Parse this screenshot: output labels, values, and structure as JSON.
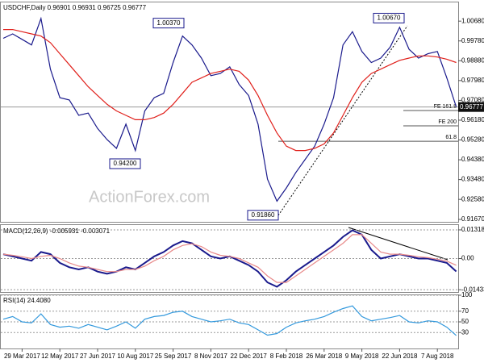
{
  "chart_data": [
    {
      "type": "line",
      "title": "USDCHF,Daily 0.96901 0.96931 0.96725 0.96777",
      "categories": [
        null,
        null,
        "29 Mar 2017",
        null,
        null,
        null,
        "12 May 2017",
        null,
        null,
        null,
        "27 Jun 2017",
        null,
        null,
        null,
        "10 Aug 2017",
        null,
        null,
        null,
        "25 Sep 2017",
        null,
        null,
        null,
        "8 Nov 2017",
        null,
        null,
        null,
        "22 Dec 2017",
        null,
        null,
        null,
        "8 Feb 2018",
        null,
        null,
        null,
        "26 Mar 2018",
        null,
        null,
        null,
        "9 May 2018",
        null,
        null,
        null,
        "22 Jun 2018",
        null,
        null,
        null,
        "7 Aug 2018",
        null,
        null
      ],
      "series": [
        {
          "color": "#1a1a8c",
          "values": [
            0.999,
            1.001,
            0.9985,
            0.996,
            1.008,
            0.985,
            0.972,
            0.971,
            0.964,
            0.965,
            0.958,
            0.953,
            0.949,
            0.96,
            0.948,
            0.966,
            0.972,
            0.974,
            0.988,
            1.0,
            0.996,
            0.99,
            0.982,
            0.983,
            0.986,
            0.978,
            0.973,
            0.96,
            0.935,
            0.925,
            0.931,
            0.938,
            0.944,
            0.95,
            0.96,
            0.972,
            0.996,
            1.002,
            0.993,
            0.988,
            0.99,
            0.995,
            1.004,
            0.994,
            0.99,
            0.992,
            0.993,
            0.981,
            0.9678
          ]
        },
        {
          "color": "#e0201b",
          "values": [
            1.003,
            1.003,
            1.002,
            1.001,
            1.0,
            0.997,
            0.992,
            0.987,
            0.982,
            0.977,
            0.973,
            0.969,
            0.966,
            0.964,
            0.962,
            0.962,
            0.963,
            0.965,
            0.969,
            0.974,
            0.979,
            0.981,
            0.983,
            0.984,
            0.985,
            0.984,
            0.98,
            0.973,
            0.964,
            0.956,
            0.95,
            0.948,
            0.948,
            0.949,
            0.951,
            0.956,
            0.964,
            0.972,
            0.979,
            0.983,
            0.985,
            0.987,
            0.989,
            0.99,
            0.991,
            0.991,
            0.9905,
            0.9895,
            0.988
          ]
        }
      ],
      "ylim": [
        0.9156,
        1.0153
      ],
      "yticks": [
        {
          "value": 1.0068,
          "label": "1.00680"
        },
        {
          "value": 0.9978,
          "label": "0.99780"
        },
        {
          "value": 0.9888,
          "label": "0.98880"
        },
        {
          "value": 0.9798,
          "label": "0.97980"
        },
        {
          "value": 0.9708,
          "label": "0.97080"
        },
        {
          "value": 0.9618,
          "label": "0.96180"
        },
        {
          "value": 0.9528,
          "label": "0.95280"
        },
        {
          "value": 0.9438,
          "label": "0.94380"
        },
        {
          "value": 0.9348,
          "label": "0.93480"
        },
        {
          "value": 0.9258,
          "label": "0.92580"
        },
        {
          "value": 0.9167,
          "label": "0.91670"
        }
      ],
      "grid": false,
      "last_price": {
        "value": 0.96777,
        "label": "0.96777"
      },
      "annotations": [
        {
          "value": 1.0037,
          "label": "1.00370"
        },
        {
          "value": 0.942,
          "label": "0.94200"
        },
        {
          "value": 0.9186,
          "label": "0.91860"
        },
        {
          "value": 1.0067,
          "label": "1.00670"
        }
      ],
      "levels": [
        {
          "value": 0.9662,
          "label": "FE 161.8"
        },
        {
          "value": 0.9592,
          "label": "FE 200"
        },
        {
          "value": 0.9522,
          "label": "61.8"
        }
      ],
      "watermark": "ActionForex.com"
    },
    {
      "type": "line",
      "title": "MACD(12,26,9) -0.005931 -0.003071",
      "series": [
        {
          "color": "#1a1a8c",
          "values": [
            0.002,
            0.001,
            0.0,
            -0.001,
            0.003,
            0.002,
            -0.002,
            -0.004,
            -0.005,
            -0.004,
            -0.006,
            -0.007,
            -0.006,
            -0.004,
            -0.005,
            -0.002,
            0.001,
            0.003,
            0.006,
            0.008,
            0.007,
            0.004,
            0.001,
            0.0,
            0.001,
            -0.001,
            -0.003,
            -0.006,
            -0.011,
            -0.013,
            -0.01,
            -0.006,
            -0.003,
            0.0,
            0.003,
            0.006,
            0.01,
            0.013,
            0.011,
            0.004,
            0.0,
            0.001,
            0.002,
            0.001,
            0.0,
            0.0,
            -0.001,
            -0.002,
            -0.005931
          ]
        },
        {
          "color": "#e88a8a",
          "values": [
            0.002,
            0.0015,
            0.0008,
            0.0,
            0.001,
            0.0015,
            0.0,
            -0.002,
            -0.0035,
            -0.004,
            -0.005,
            -0.006,
            -0.006,
            -0.005,
            -0.005,
            -0.0035,
            -0.001,
            0.001,
            0.004,
            0.006,
            0.0068,
            0.0055,
            0.003,
            0.0015,
            0.001,
            0.0,
            -0.002,
            -0.004,
            -0.008,
            -0.011,
            -0.011,
            -0.008,
            -0.005,
            -0.002,
            0.001,
            0.004,
            0.007,
            0.011,
            0.011,
            0.007,
            0.003,
            0.002,
            0.002,
            0.0015,
            0.0008,
            0.0004,
            -0.0003,
            -0.0012,
            -0.003071
          ]
        }
      ],
      "ylim": [
        -0.0154,
        0.0154
      ],
      "yticks": [
        0.013184,
        {
          "value": 0,
          "label": "0.00"
        },
        -0.014339
      ],
      "grid": true
    },
    {
      "type": "line",
      "title": "RSI(14) 24.4080",
      "series": [
        {
          "color": "#3399dd",
          "values": [
            55,
            60,
            50,
            48,
            65,
            45,
            40,
            42,
            38,
            45,
            40,
            35,
            42,
            50,
            38,
            55,
            60,
            62,
            68,
            70,
            60,
            55,
            50,
            52,
            55,
            48,
            45,
            35,
            25,
            28,
            40,
            48,
            52,
            55,
            60,
            68,
            75,
            80,
            60,
            52,
            55,
            58,
            62,
            50,
            48,
            52,
            50,
            40,
            24.408
          ]
        }
      ],
      "ylim": [
        0,
        100
      ],
      "yticks": [
        100,
        70,
        50,
        30
      ],
      "grid": true
    }
  ]
}
